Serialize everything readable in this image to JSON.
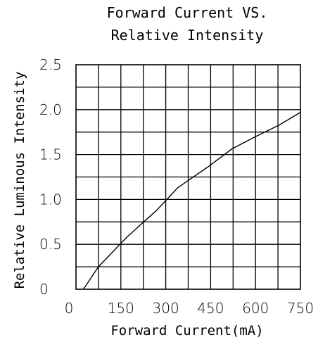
{
  "chart_data": {
    "type": "line",
    "title": [
      "Forward Current VS.",
      "Relative Intensity"
    ],
    "xlabel": "Forward Current(mA)",
    "ylabel": "Relative Luminous Intensity",
    "xlim": [
      0,
      750
    ],
    "ylim": [
      0,
      2.5
    ],
    "x_ticks": [
      "0",
      "150",
      "300",
      "450",
      "600",
      "750"
    ],
    "y_ticks": [
      "0",
      "0.5",
      "1.0",
      "1.5",
      "2.0",
      "2.5"
    ],
    "x_gridlines": 10,
    "y_gridlines": 10,
    "grid": true,
    "series": [
      {
        "x": [
          25,
          75,
          170,
          270,
          340,
          440,
          520,
          600,
          680,
          750
        ],
        "y": [
          0.0,
          0.25,
          0.58,
          0.88,
          1.13,
          1.36,
          1.56,
          1.7,
          1.83,
          1.97
        ]
      }
    ]
  }
}
